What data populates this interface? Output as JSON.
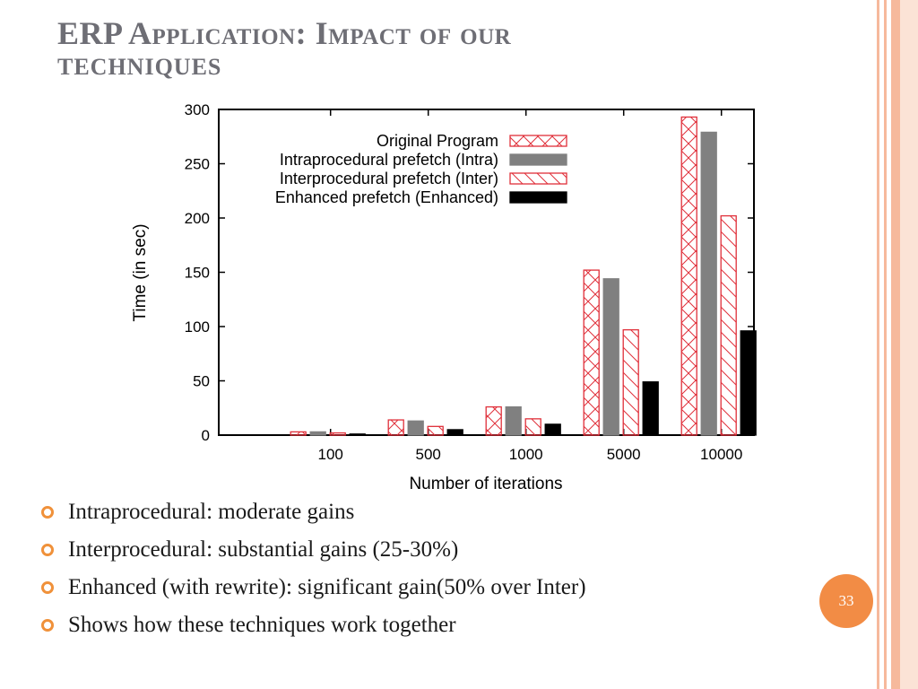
{
  "slide": {
    "title_line1": "ERP Application: Impact of our",
    "title_line2": "techniques",
    "page_number": "33",
    "bullets": [
      "Intraprocedural: moderate gains",
      "Interprocedural: substantial gains (25-30%)",
      "Enhanced (with rewrite): significant gain(50% over Inter)",
      "Shows how these techniques work together"
    ],
    "colors": {
      "title": "#6e6e75",
      "bullet_marker": "#f0913a",
      "page_badge": "#f28c45",
      "accent_stripes": "#f6b99c"
    }
  },
  "chart_data": {
    "type": "bar",
    "categories": [
      "100",
      "500",
      "1000",
      "5000",
      "10000"
    ],
    "xlabel": "Number of iterations",
    "ylabel": "Time (in sec)",
    "ylim": [
      0,
      300
    ],
    "yticks": [
      "0",
      "50",
      "100",
      "150",
      "200",
      "250",
      "300"
    ],
    "legend_position": "top-right",
    "series": [
      {
        "name": "Original Program",
        "values": [
          3,
          14,
          26,
          152,
          293
        ],
        "color": "#e0303a",
        "pattern": "crosshatch"
      },
      {
        "name": "Intraprocedural prefetch (Intra)",
        "values": [
          3,
          13,
          26,
          144,
          279
        ],
        "color": "#808080",
        "pattern": "solid"
      },
      {
        "name": "Interprocedural prefetch (Inter)",
        "values": [
          2,
          8,
          15,
          97,
          202
        ],
        "color": "#e0303a",
        "pattern": "diagonal"
      },
      {
        "name": "Enhanced prefetch (Enhanced)",
        "values": [
          1,
          5,
          10,
          49,
          96
        ],
        "color": "#000000",
        "pattern": "solid"
      }
    ]
  }
}
